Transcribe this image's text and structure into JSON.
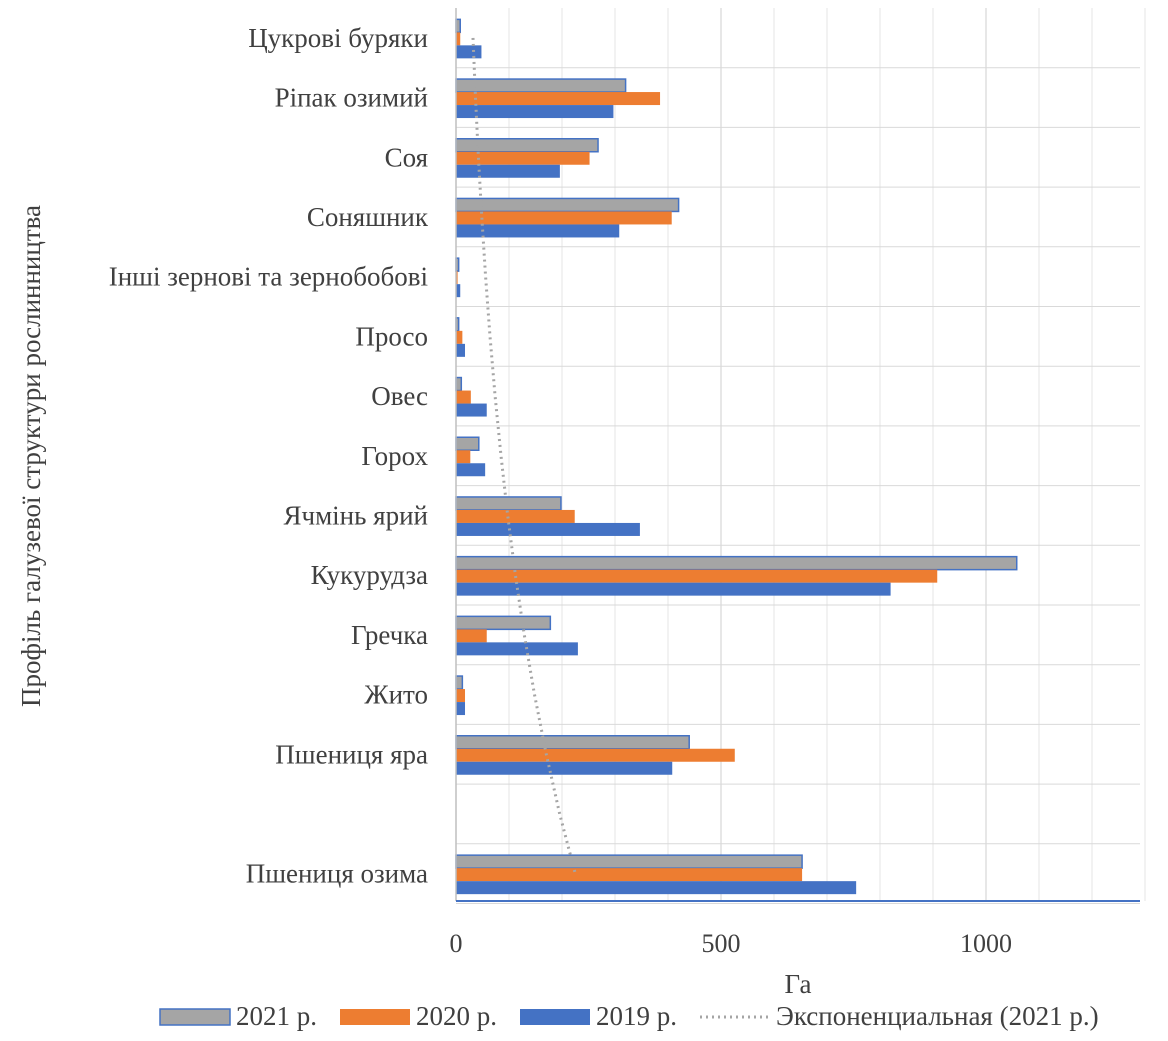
{
  "chart_data": {
    "type": "bar",
    "orientation": "horizontal",
    "categories": [
      "Цукрові буряки",
      "Ріпак озимий",
      "Соя",
      "Соняшник",
      "Інші зернові та зернобобові",
      "Просо",
      "Овес",
      "Горох",
      "Ячмінь ярий",
      "Кукурудза",
      "Гречка",
      "Жито",
      "Пшениця яра",
      "",
      "Пшениця озима"
    ],
    "series": [
      {
        "name": "2021 р.",
        "color": "#a5a5a5",
        "border": "#4472c4",
        "values": [
          8,
          320,
          268,
          420,
          5,
          5,
          10,
          43,
          198,
          1058,
          178,
          12,
          440,
          null,
          653
        ]
      },
      {
        "name": "2020 р.",
        "color": "#ed7d31",
        "values": [
          8,
          385,
          252,
          407,
          3,
          12,
          28,
          27,
          224,
          908,
          58,
          17,
          526,
          null,
          653
        ]
      },
      {
        "name": "2019 р.",
        "color": "#4472c4",
        "values": [
          48,
          297,
          196,
          308,
          8,
          17,
          58,
          55,
          347,
          820,
          230,
          17,
          408,
          null,
          755
        ]
      }
    ],
    "trendline": {
      "name": "Экспоненциальная (2021 р.)",
      "series": "2021 р.",
      "type": "exponential",
      "color": "#a5a5a5",
      "x_start": 32,
      "x_end": 225
    },
    "xlabel": "Га",
    "ylabel": "Профіль галузевої структури рослинництва",
    "xlim": [
      0,
      1300
    ],
    "xticks": [
      0,
      500,
      1000
    ],
    "grid": true,
    "legend": "bottom"
  }
}
